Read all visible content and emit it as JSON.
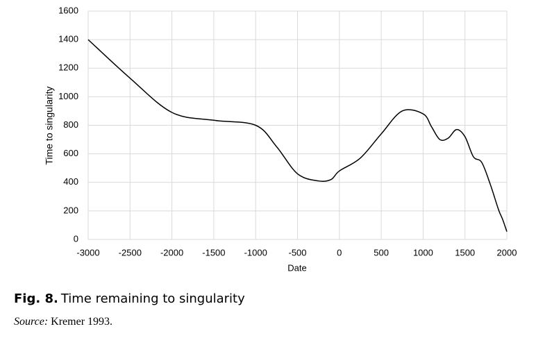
{
  "chart_data": {
    "type": "line",
    "xlabel": "Date",
    "ylabel": "Time to singularity",
    "x": [
      -3000,
      -2500,
      -2000,
      -1500,
      -1000,
      -750,
      -500,
      -250,
      -100,
      0,
      250,
      500,
      750,
      1000,
      1100,
      1200,
      1300,
      1400,
      1500,
      1600,
      1700,
      1800,
      1900,
      1950,
      2000
    ],
    "values": [
      1400,
      1130,
      890,
      835,
      800,
      650,
      460,
      410,
      420,
      480,
      570,
      740,
      900,
      880,
      790,
      700,
      710,
      770,
      720,
      580,
      540,
      390,
      210,
      140,
      55
    ],
    "color": "#000000",
    "xlim": [
      -3000,
      2000
    ],
    "xticks": [
      -3000,
      -2500,
      -2000,
      -1500,
      -1000,
      -500,
      0,
      500,
      1000,
      1500,
      2000
    ],
    "ylim": [
      0,
      1600
    ],
    "yticks": [
      0,
      200,
      400,
      600,
      800,
      1000,
      1200,
      1400,
      1600
    ],
    "grid": true
  },
  "caption": {
    "label": "Fig. 8.",
    "text": "Time remaining to singularity"
  },
  "source": {
    "label": "Source:",
    "text": "Kremer 1993."
  }
}
